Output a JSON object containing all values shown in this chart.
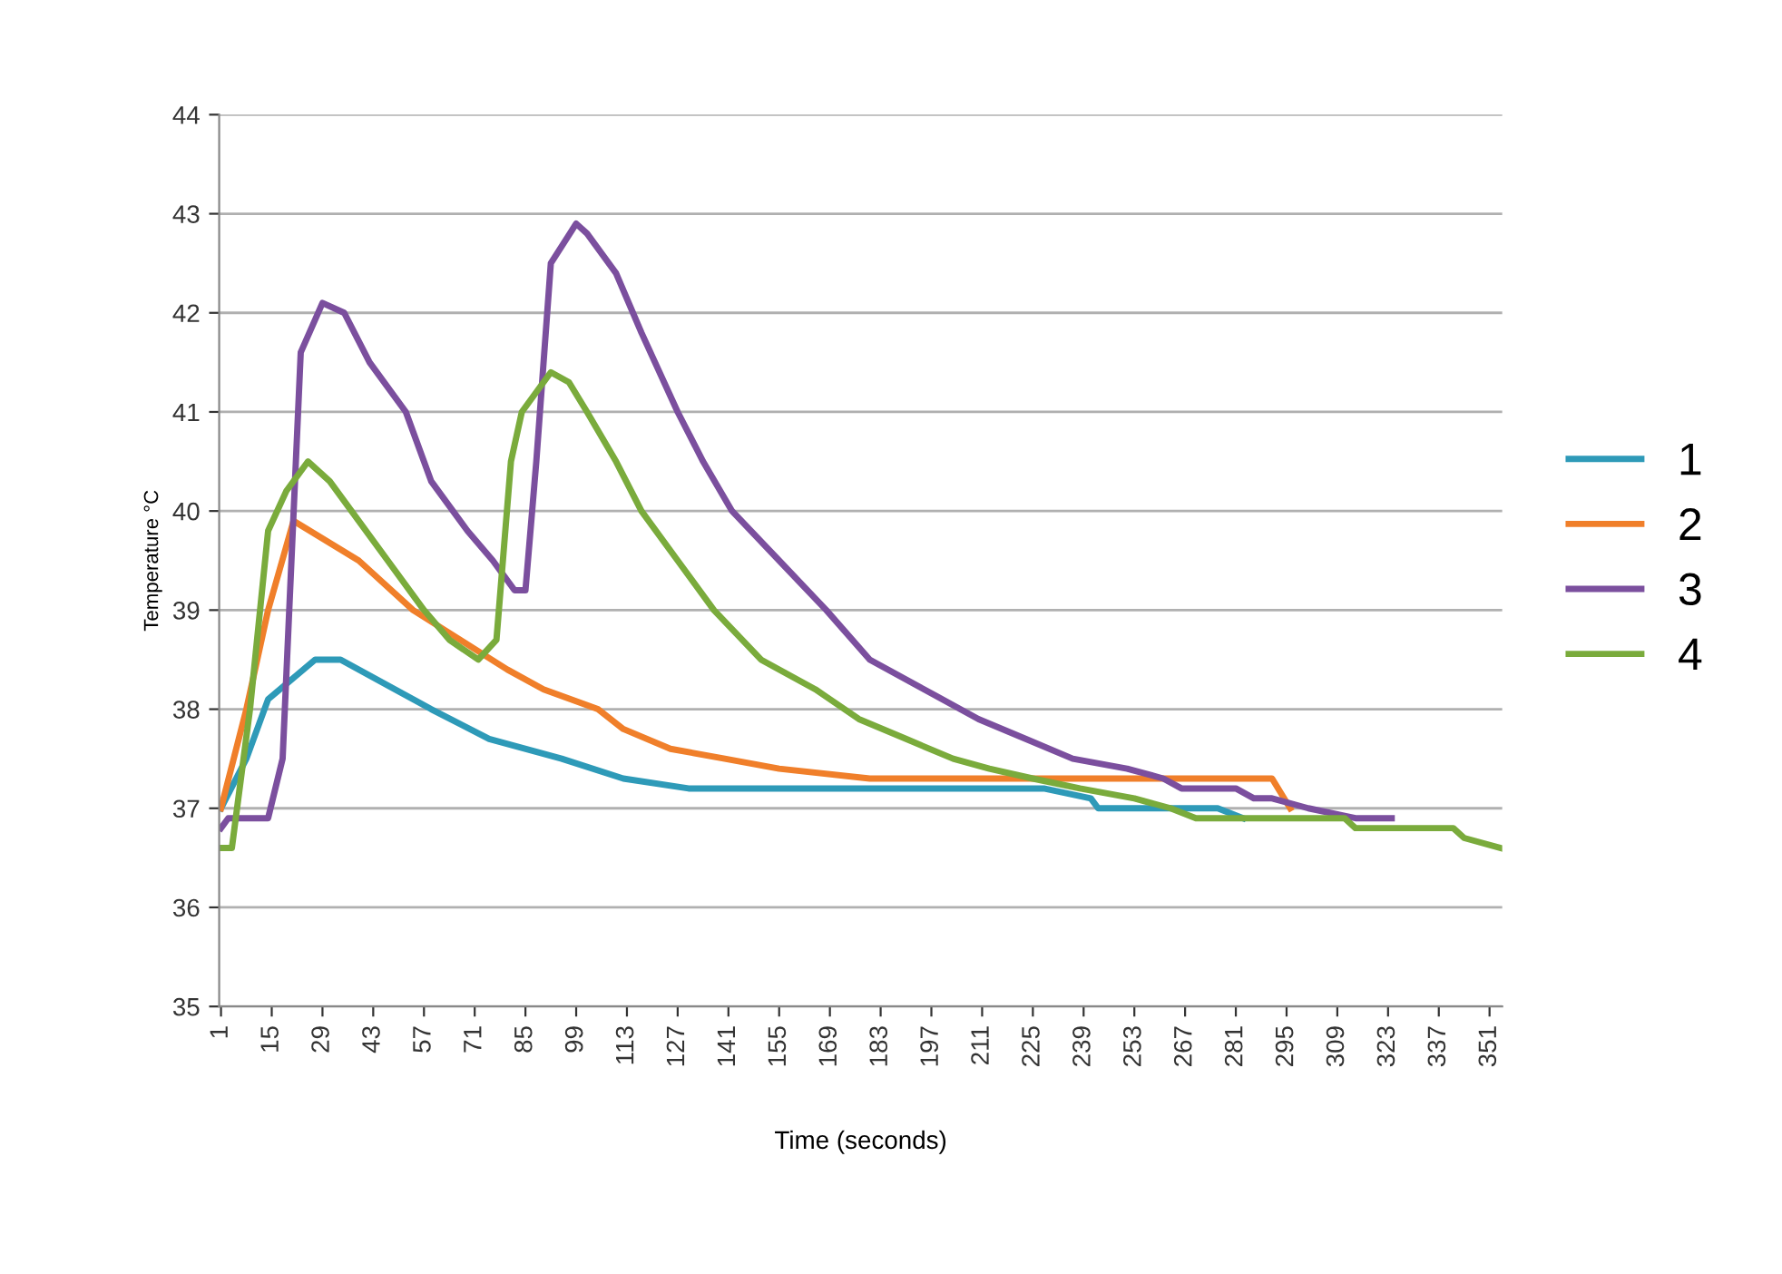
{
  "chart_data": {
    "type": "line",
    "xlabel": "Time (seconds)",
    "ylabel": "Temperature °C",
    "xlim": [
      0.5,
      354.5
    ],
    "xticks": [
      1,
      15,
      29,
      43,
      57,
      71,
      85,
      99,
      113,
      127,
      141,
      155,
      169,
      183,
      197,
      211,
      225,
      239,
      253,
      267,
      281,
      295,
      309,
      323,
      337,
      351
    ],
    "ylim": [
      35,
      44
    ],
    "yticks": [
      35,
      36,
      37,
      38,
      39,
      40,
      41,
      42,
      43,
      44
    ],
    "grid": "y",
    "legend": "right",
    "marker": "none",
    "line_style": "solid",
    "series": [
      {
        "name": "1",
        "color": "#2e9ab8",
        "x": [
          1,
          8,
          14,
          27,
          34,
          59,
          75,
          95,
          112,
          130,
          228,
          241,
          243,
          276,
          283
        ],
        "values": [
          37.0,
          37.5,
          38.1,
          38.5,
          38.5,
          38.0,
          37.7,
          37.5,
          37.3,
          37.2,
          37.2,
          37.1,
          37.0,
          37.0,
          36.9
        ]
      },
      {
        "name": "2",
        "color": "#f07f2a",
        "x": [
          1,
          8,
          14,
          21,
          39,
          54,
          67,
          80,
          90,
          105,
          112,
          125,
          140,
          155,
          180,
          291,
          296
        ],
        "values": [
          37.0,
          38.0,
          39.0,
          39.9,
          39.5,
          39.0,
          38.7,
          38.4,
          38.2,
          38.0,
          37.8,
          37.6,
          37.5,
          37.4,
          37.3,
          37.3,
          37.0
        ]
      },
      {
        "name": "3",
        "color": "#7b4f9e",
        "x": [
          1,
          3,
          14,
          18,
          23,
          29,
          35,
          42,
          52,
          59,
          69,
          76,
          82,
          85,
          88,
          92,
          99,
          102,
          110,
          117,
          127,
          134,
          142,
          155,
          168,
          180,
          195,
          210,
          223,
          236,
          251,
          261,
          266,
          281,
          286,
          291,
          301,
          314,
          324
        ],
        "values": [
          36.8,
          36.9,
          36.9,
          37.5,
          41.6,
          42.1,
          42.0,
          41.5,
          41.0,
          40.3,
          39.8,
          39.5,
          39.2,
          39.2,
          40.5,
          42.5,
          42.9,
          42.8,
          42.4,
          41.8,
          41.0,
          40.5,
          40.0,
          39.5,
          39.0,
          38.5,
          38.2,
          37.9,
          37.7,
          37.5,
          37.4,
          37.3,
          37.2,
          37.2,
          37.1,
          37.1,
          37.0,
          36.9,
          36.9
        ]
      },
      {
        "name": "4",
        "color": "#7aab3c",
        "x": [
          1,
          4,
          9,
          14,
          19,
          25,
          31,
          37,
          47,
          57,
          64,
          72,
          77,
          81,
          84,
          92,
          97,
          102,
          110,
          117,
          127,
          137,
          150,
          165,
          177,
          190,
          203,
          213,
          225,
          238,
          253,
          263,
          270,
          311,
          314,
          341,
          344,
          354
        ],
        "values": [
          36.6,
          36.6,
          38.0,
          39.8,
          40.2,
          40.5,
          40.3,
          40.0,
          39.5,
          39.0,
          38.7,
          38.5,
          38.7,
          40.5,
          41.0,
          41.4,
          41.3,
          41.0,
          40.5,
          40.0,
          39.5,
          39.0,
          38.5,
          38.2,
          37.9,
          37.7,
          37.5,
          37.4,
          37.3,
          37.2,
          37.1,
          37.0,
          36.9,
          36.9,
          36.8,
          36.8,
          36.7,
          36.6
        ]
      }
    ]
  }
}
